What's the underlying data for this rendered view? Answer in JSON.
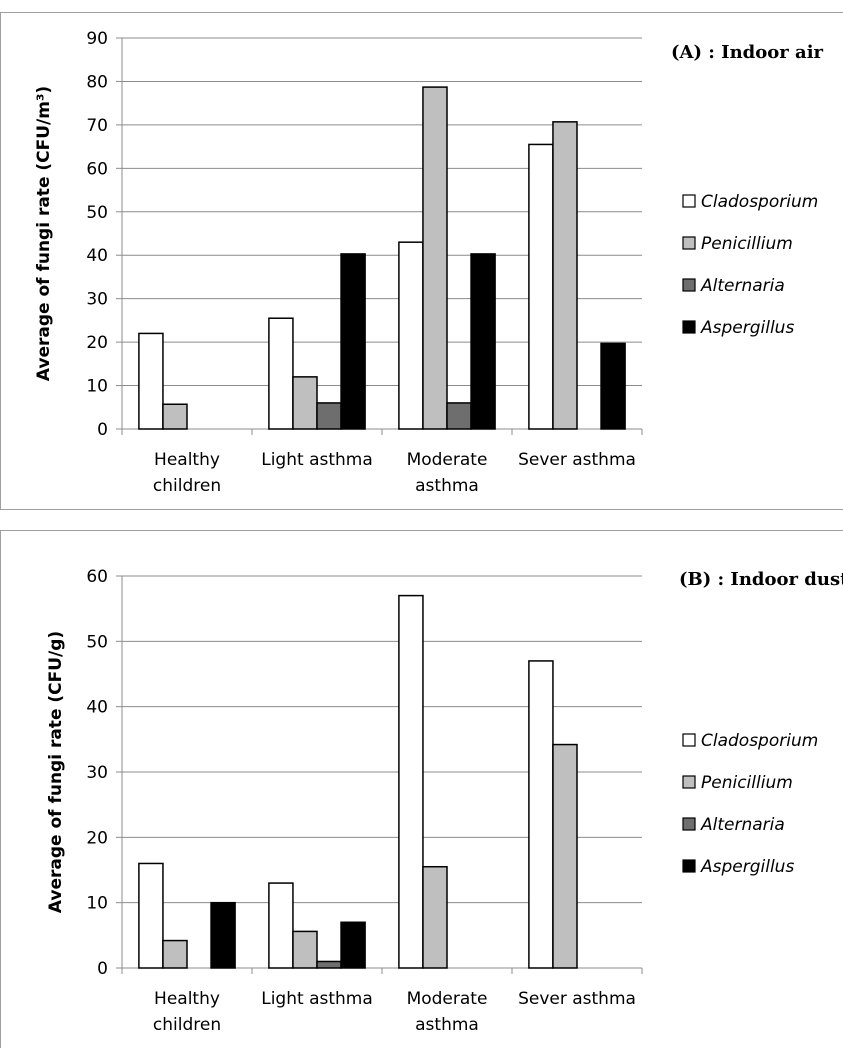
{
  "series_colors": {
    "Cladosporium": "#ffffff",
    "Penicillium": "#bfbfbf",
    "Alternaria": "#6e6e6e",
    "Aspergillus": "#000000"
  },
  "chart_data": [
    {
      "type": "bar",
      "title": "(A) : Indoor air",
      "ylabel": "Average of fungi rate (CFU/m³)",
      "xlabel": "",
      "ylim": [
        0,
        90
      ],
      "yticks": [
        0,
        10,
        20,
        30,
        40,
        50,
        60,
        70,
        80,
        90
      ],
      "grid": true,
      "legend_position": "right",
      "categories": [
        [
          "Healthy",
          "children"
        ],
        [
          "Light asthma"
        ],
        [
          "Moderate",
          "asthma"
        ],
        [
          "Sever asthma"
        ]
      ],
      "series": [
        {
          "name": "Cladosporium",
          "values": [
            22,
            25.5,
            43,
            65.5
          ]
        },
        {
          "name": "Penicillium",
          "values": [
            5.7,
            12,
            78.7,
            70.7
          ]
        },
        {
          "name": "Alternaria",
          "values": [
            0,
            6,
            6,
            0
          ]
        },
        {
          "name": "Aspergillus",
          "values": [
            0,
            40.3,
            40.3,
            19.7
          ]
        }
      ]
    },
    {
      "type": "bar",
      "title": "(B) : Indoor dust",
      "ylabel": "Average of fungi rate (CFU/g)",
      "xlabel": "",
      "ylim": [
        0,
        60
      ],
      "yticks": [
        0,
        10,
        20,
        30,
        40,
        50,
        60
      ],
      "grid": true,
      "legend_position": "right",
      "categories": [
        [
          "Healthy",
          "children"
        ],
        [
          "Light asthma"
        ],
        [
          "Moderate",
          "asthma"
        ],
        [
          "Sever asthma"
        ]
      ],
      "series": [
        {
          "name": "Cladosporium",
          "values": [
            16,
            13,
            57,
            47
          ]
        },
        {
          "name": "Penicillium",
          "values": [
            4.2,
            5.6,
            15.5,
            34.2
          ]
        },
        {
          "name": "Alternaria",
          "values": [
            0,
            1,
            0,
            0
          ]
        },
        {
          "name": "Aspergillus",
          "values": [
            10,
            7,
            0,
            0
          ]
        }
      ]
    }
  ]
}
